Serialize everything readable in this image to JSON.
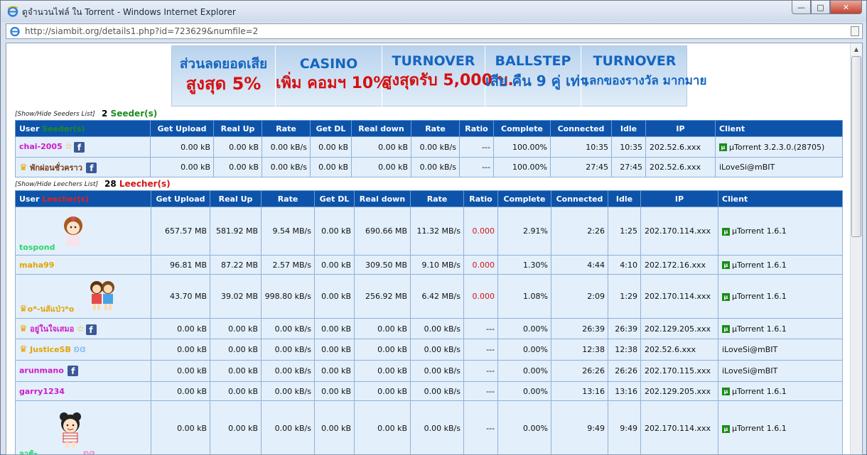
{
  "window": {
    "title": "ดูจำนวนไฟล์ ใน Torrent - Windows Internet Explorer",
    "minimize": "—",
    "maximize": "□",
    "close": "✕"
  },
  "address": {
    "url": "http://siambit.org/details1.php?id=723629&numfile=2"
  },
  "banner": [
    {
      "line1": "ส่วนลดยอดเสีย",
      "line2": "สูงสุด 5%"
    },
    {
      "line1": "CASINO",
      "line2": "เพิ่ม คอมฯ 10%"
    },
    {
      "line1": "TURNOVER",
      "line2": "สูงสุดรับ 5,000 บ."
    },
    {
      "line1": "BALLSTEP",
      "line2": "เสีย คืน 9 คู่ เท่า"
    },
    {
      "line1": "TURNOVER",
      "line2": "แลกของรางวัล มากมาย"
    }
  ],
  "seeders": {
    "toggle": "[Show/Hide Seeders List]",
    "count": "2",
    "count_label": "Seeder(s)",
    "header_user": "User",
    "header_user_suffix": "Seeder(s)",
    "columns": [
      "Get Upload",
      "Real Up",
      "Rate",
      "Get DL",
      "Real down",
      "Rate",
      "Ratio",
      "Complete",
      "Connected",
      "Idle",
      "IP",
      "Client"
    ],
    "rows": [
      {
        "user": "chai-2005",
        "get_upload": "0.00 kB",
        "real_up": "0.00 kB",
        "rate_up": "0.00 kB/s",
        "get_dl": "0.00 kB",
        "real_down": "0.00 kB",
        "rate_down": "0.00 kB/s",
        "ratio": "---",
        "complete": "100.00%",
        "connected": "10:35",
        "idle": "10:35",
        "ip": "202.52.6.xxx",
        "client": "µTorrent 3.2.3.0.(28705)"
      },
      {
        "user": "พักผ่อนชั่วคราว",
        "get_upload": "0.00 kB",
        "real_up": "0.00 kB",
        "rate_up": "0.00 kB/s",
        "get_dl": "0.00 kB",
        "real_down": "0.00 kB",
        "rate_down": "0.00 kB/s",
        "ratio": "---",
        "complete": "100.00%",
        "connected": "27:45",
        "idle": "27:45",
        "ip": "202.52.6.xxx",
        "client": "iLoveSi@mBIT"
      }
    ]
  },
  "leechers": {
    "toggle": "[Show/Hide Leechers List]",
    "count": "28",
    "count_label": "Leecher(s)",
    "header_user": "User",
    "header_user_suffix": "Leecher(s)",
    "columns": [
      "Get Upload",
      "Real Up",
      "Rate",
      "Get DL",
      "Real down",
      "Rate",
      "Ratio",
      "Complete",
      "Connected",
      "Idle",
      "IP",
      "Client"
    ],
    "rows": [
      {
        "user": "tospond",
        "get_upload": "657.57 MB",
        "real_up": "581.92 MB",
        "rate_up": "9.54 MB/s",
        "get_dl": "0.00 kB",
        "real_down": "690.66 MB",
        "rate_down": "11.32 MB/s",
        "ratio": "0.000",
        "complete": "2.91%",
        "connected": "2:26",
        "idle": "1:25",
        "ip": "202.170.114.xxx",
        "client": "µTorrent 1.6.1"
      },
      {
        "user": "maha99",
        "get_upload": "96.81 MB",
        "real_up": "87.22 MB",
        "rate_up": "2.57 MB/s",
        "get_dl": "0.00 kB",
        "real_down": "309.50 MB",
        "rate_down": "9.10 MB/s",
        "ratio": "0.000",
        "complete": "1.30%",
        "connected": "4:44",
        "idle": "4:10",
        "ip": "202.172.16.xxx",
        "client": "µTorrent 1.6.1"
      },
      {
        "user": "o*-นลัแป่ว*o",
        "get_upload": "43.70 MB",
        "real_up": "39.02 MB",
        "rate_up": "998.80 kB/s",
        "get_dl": "0.00 kB",
        "real_down": "256.92 MB",
        "rate_down": "6.42 MB/s",
        "ratio": "0.000",
        "complete": "1.08%",
        "connected": "2:09",
        "idle": "1:29",
        "ip": "202.170.114.xxx",
        "client": "µTorrent 1.6.1"
      },
      {
        "user": "อยู่ในใจเสมอ",
        "get_upload": "0.00 kB",
        "real_up": "0.00 kB",
        "rate_up": "0.00 kB/s",
        "get_dl": "0.00 kB",
        "real_down": "0.00 kB",
        "rate_down": "0.00 kB/s",
        "ratio": "---",
        "complete": "0.00%",
        "connected": "26:39",
        "idle": "26:39",
        "ip": "202.129.205.xxx",
        "client": "µTorrent 1.6.1"
      },
      {
        "user": "JusticeSB",
        "get_upload": "0.00 kB",
        "real_up": "0.00 kB",
        "rate_up": "0.00 kB/s",
        "get_dl": "0.00 kB",
        "real_down": "0.00 kB",
        "rate_down": "0.00 kB/s",
        "ratio": "---",
        "complete": "0.00%",
        "connected": "12:38",
        "idle": "12:38",
        "ip": "202.52.6.xxx",
        "client": "iLoveSi@mBIT"
      },
      {
        "user": "arunmano",
        "get_upload": "0.00 kB",
        "real_up": "0.00 kB",
        "rate_up": "0.00 kB/s",
        "get_dl": "0.00 kB",
        "real_down": "0.00 kB",
        "rate_down": "0.00 kB/s",
        "ratio": "---",
        "complete": "0.00%",
        "connected": "26:26",
        "idle": "26:26",
        "ip": "202.170.115.xxx",
        "client": "iLoveSi@mBIT"
      },
      {
        "user": "garry1234",
        "get_upload": "0.00 kB",
        "real_up": "0.00 kB",
        "rate_up": "0.00 kB/s",
        "get_dl": "0.00 kB",
        "real_down": "0.00 kB",
        "rate_down": "0.00 kB/s",
        "ratio": "---",
        "complete": "0.00%",
        "connected": "13:16",
        "idle": "13:16",
        "ip": "202.129.205.xxx",
        "client": "µTorrent 1.6.1"
      },
      {
        "user": "ลาช้ะ",
        "get_upload": "0.00 kB",
        "real_up": "0.00 kB",
        "rate_up": "0.00 kB/s",
        "get_dl": "0.00 kB",
        "real_down": "0.00 kB",
        "rate_down": "0.00 kB/s",
        "ratio": "---",
        "complete": "0.00%",
        "connected": "9:49",
        "idle": "9:49",
        "ip": "202.170.114.xxx",
        "client": "µTorrent 1.6.1"
      }
    ]
  },
  "icons": {
    "ie": "internet-explorer-icon",
    "facebook": "facebook-icon",
    "crown": "crown-icon",
    "star": "star-icon",
    "utorrent": "utorrent-icon"
  }
}
